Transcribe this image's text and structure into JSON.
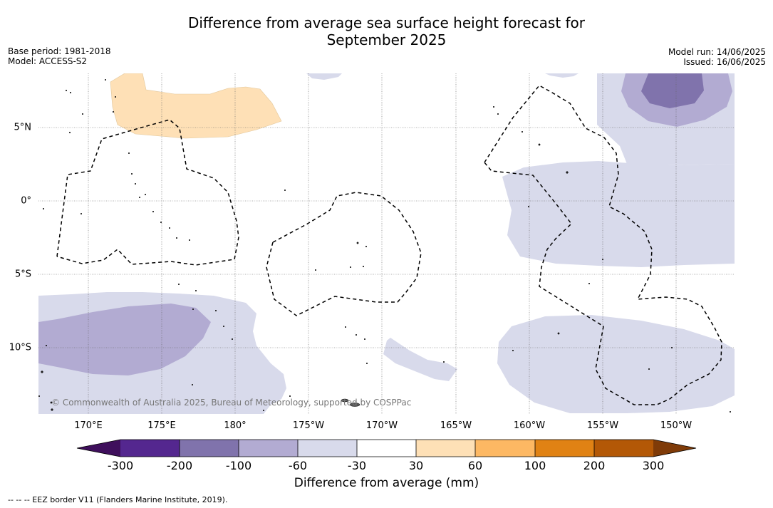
{
  "title": {
    "line1": "Difference from average sea surface height forecast for",
    "line2": "September 2025"
  },
  "meta": {
    "base_period": "Base period: 1981-2018",
    "model": "Model: ACCESS-S2",
    "model_run": "Model run: 14/06/2025",
    "issued": "Issued: 16/06/2025"
  },
  "map": {
    "lat_labels": [
      "5°N",
      "0°",
      "5°S",
      "10°S"
    ],
    "lon_labels": [
      "170°E",
      "175°E",
      "180°",
      "175°W",
      "170°W",
      "165°W",
      "160°W",
      "155°W",
      "150°W"
    ],
    "copyright": "© Commonwealth of Australia 2025, Bureau of Meteorology, supported by COSPPac"
  },
  "colorbar": {
    "ticks": [
      "-300",
      "-200",
      "-100",
      "-60",
      "-30",
      "30",
      "60",
      "100",
      "200",
      "300"
    ],
    "colors": [
      "#3f0f5c",
      "#54278f",
      "#8073ac",
      "#b2abd2",
      "#d8daeb",
      "#ffffff",
      "#fee0b6",
      "#fdb863",
      "#e08214",
      "#b35806",
      "#7f3b08"
    ],
    "label": "Difference from average (mm)"
  },
  "footer": "--  --  -- EEZ border V11 (Flanders Marine Institute, 2019)."
}
